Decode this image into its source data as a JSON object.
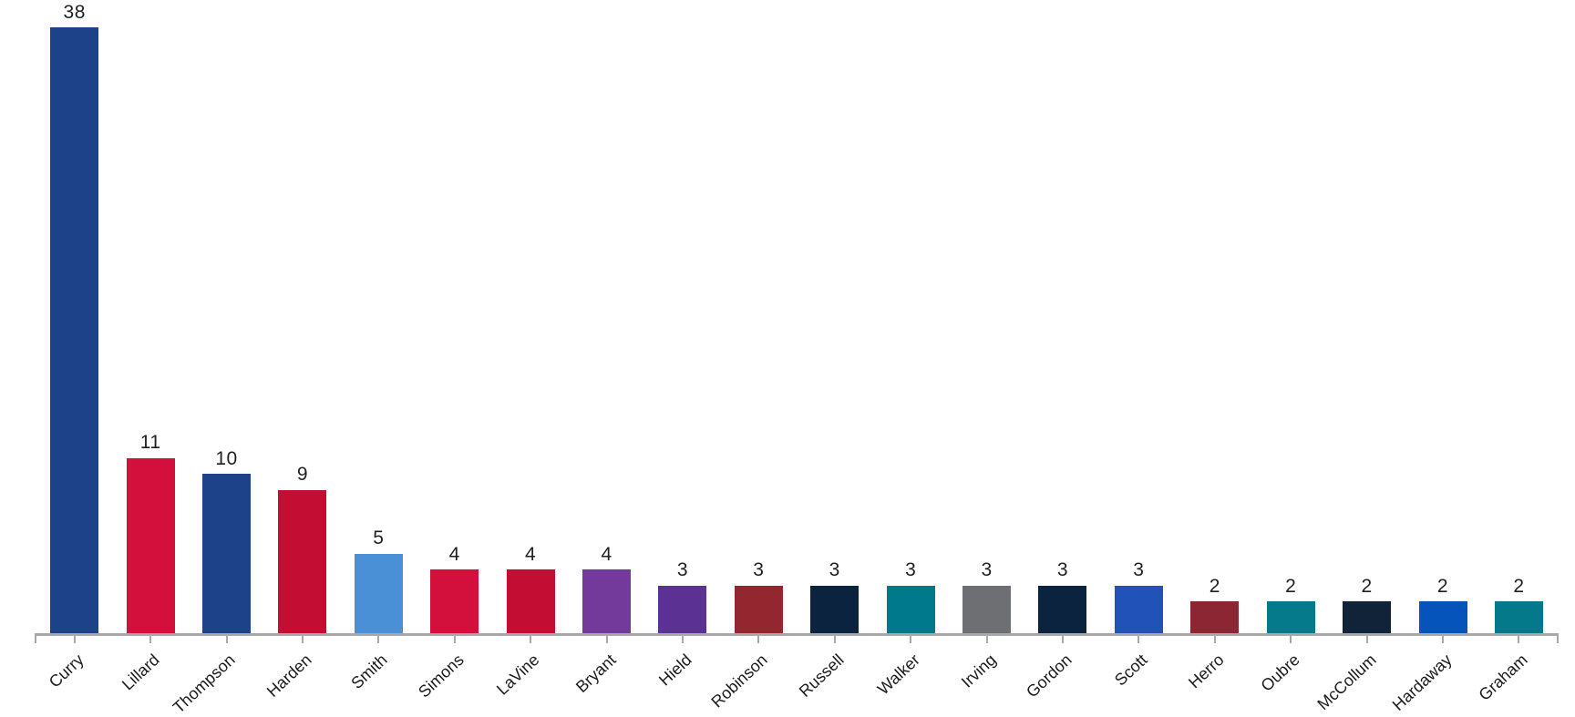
{
  "chart": {
    "background": "#ffffff",
    "axis_color": "#a8a8a8",
    "value_label_color": "#1f1f1f",
    "category_label_color": "#1a1a1a"
  },
  "chart_data": {
    "type": "bar",
    "title": "",
    "xlabel": "",
    "ylabel": "",
    "categories": [
      "Curry",
      "Lillard",
      "Thompson",
      "Harden",
      "Smith",
      "Simons",
      "LaVine",
      "Bryant",
      "Hield",
      "Robinson",
      "Russell",
      "Walker",
      "Irving",
      "Gordon",
      "Scott",
      "Herro",
      "Oubre",
      "McCollum",
      "Hardaway",
      "Graham"
    ],
    "values": [
      38,
      11,
      10,
      9,
      5,
      4,
      4,
      4,
      3,
      3,
      3,
      3,
      3,
      3,
      3,
      2,
      2,
      2,
      2,
      2
    ],
    "bar_colors": [
      "#1d428a",
      "#d30f3c",
      "#1d428a",
      "#c40d33",
      "#4a90d7",
      "#d30f3c",
      "#c40d33",
      "#73399b",
      "#5c3194",
      "#93262f",
      "#0c2340",
      "#00798c",
      "#6e6f72",
      "#0c2340",
      "#2152b8",
      "#8d2633",
      "#057a8b",
      "#112339",
      "#0454bb",
      "#04798a"
    ],
    "ylim": [
      0,
      40
    ],
    "grid": false,
    "legend": false,
    "value_labels_above_bars": true,
    "x_tick_rotation_deg": -43
  }
}
